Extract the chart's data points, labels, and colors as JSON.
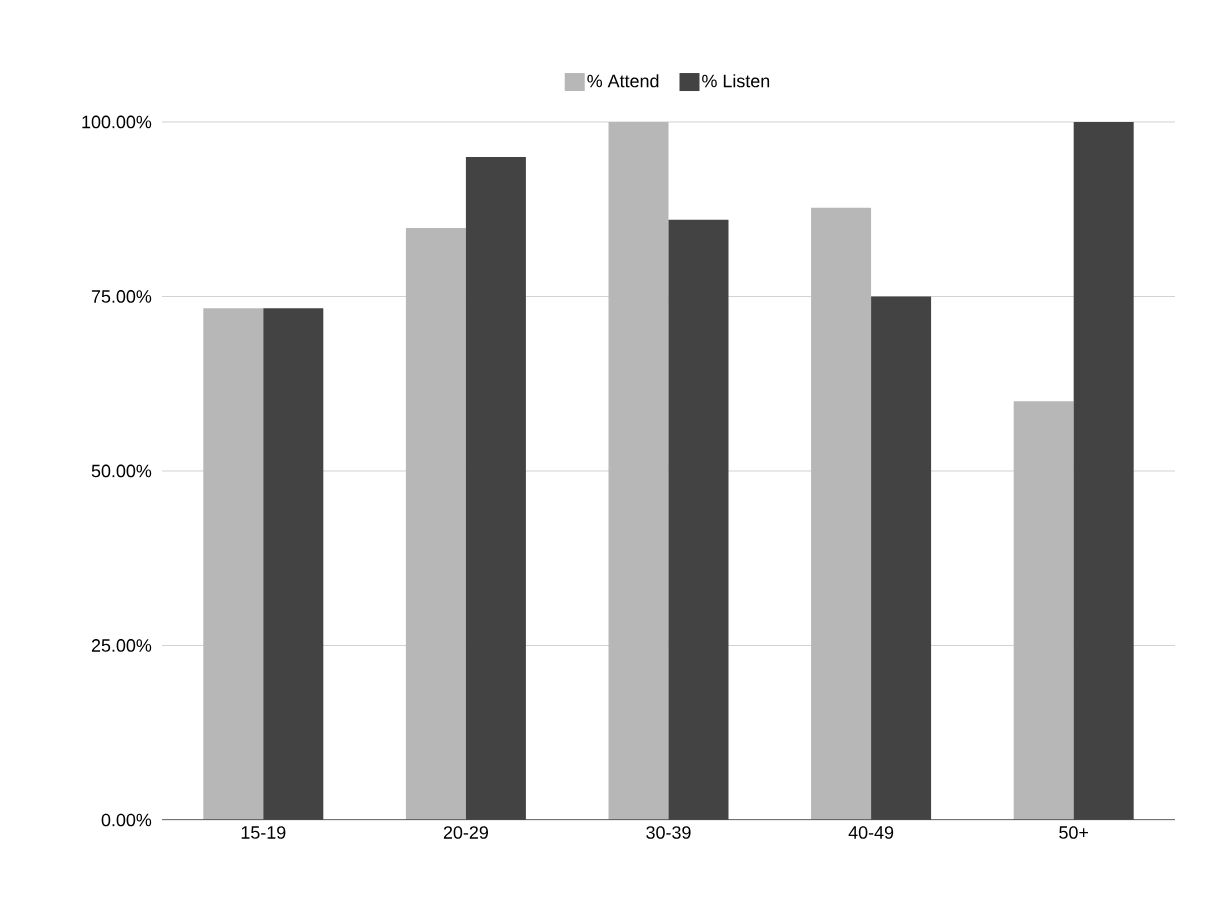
{
  "chart_data": {
    "type": "bar",
    "categories": [
      "15-19",
      "20-29",
      "30-39",
      "40-49",
      "50+"
    ],
    "series": [
      {
        "name": "% Attend",
        "color": "#b7b7b7",
        "values": [
          73.3,
          84.8,
          100,
          87.7,
          60
        ]
      },
      {
        "name": "% Listen",
        "color": "#434343",
        "values": [
          73.3,
          95,
          86,
          75,
          100
        ]
      }
    ],
    "ylim": [
      0,
      100
    ],
    "yticks": [
      {
        "value": 0,
        "label": "0.00%"
      },
      {
        "value": 25,
        "label": "25.00%"
      },
      {
        "value": 50,
        "label": "50.00%"
      },
      {
        "value": 75,
        "label": "75.00%"
      },
      {
        "value": 100,
        "label": "100.00%"
      }
    ],
    "grid": "y",
    "legend": "top"
  }
}
